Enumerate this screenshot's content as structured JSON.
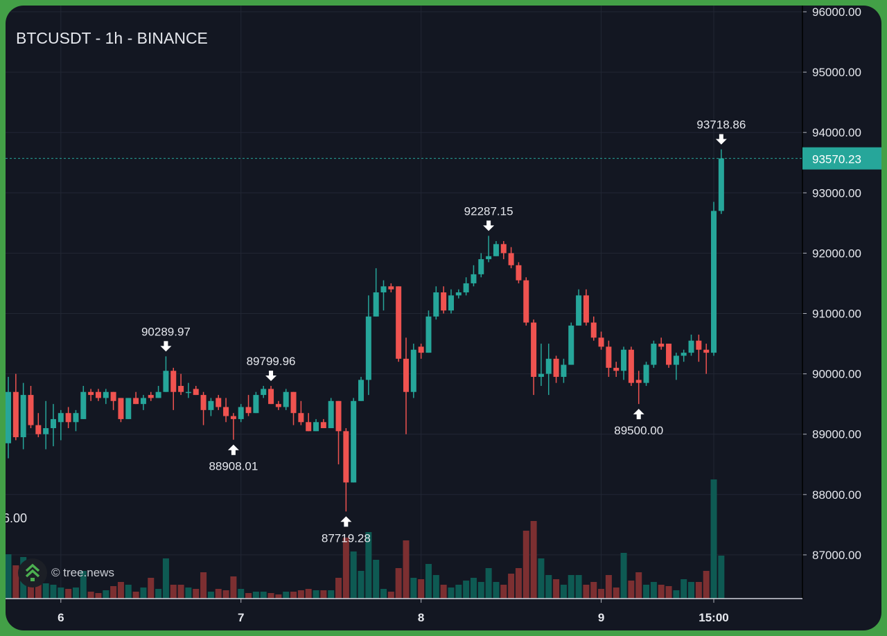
{
  "header": {
    "title": "BTCUSDT - 1h - BINANCE"
  },
  "watermark": {
    "text": "© tree.news",
    "icon": "tree-news-chevrons-logo"
  },
  "colors": {
    "up": "#26a69a",
    "down": "#ef5350",
    "up_volume": "#0e5a53",
    "down_volume": "#7c2f31",
    "background": "#131722",
    "grid": "#222734",
    "frame": "#43a047",
    "text": "#e6e8ee"
  },
  "chart_data": {
    "type": "candlestick",
    "title": "BTCUSDT - 1h - BINANCE",
    "interval": "1h",
    "ylim": [
      86300,
      96000
    ],
    "y_ticks": [
      "96000.00",
      "95000.00",
      "94000.00",
      "93000.00",
      "92000.00",
      "91000.00",
      "90000.00",
      "89000.00",
      "88000.00",
      "87000.00"
    ],
    "y_tick_values": [
      96000,
      95000,
      94000,
      93000,
      92000,
      91000,
      90000,
      89000,
      88000,
      87000
    ],
    "x_ticks": [
      {
        "label": "6",
        "candle": 7
      },
      {
        "label": "7",
        "candle": 31
      },
      {
        "label": "8",
        "candle": 55
      },
      {
        "label": "9",
        "candle": 79
      },
      {
        "label": "15:00",
        "candle": 94
      }
    ],
    "last_price": {
      "value": 93570.23,
      "label": "93570.23"
    },
    "grid": true,
    "ohlc": [
      [
        88850,
        89950,
        88600,
        89700
      ],
      [
        89700,
        90000,
        88900,
        88950
      ],
      [
        88950,
        89850,
        88750,
        89650
      ],
      [
        89650,
        89800,
        89100,
        89150
      ],
      [
        89150,
        89350,
        88950,
        89000
      ],
      [
        89000,
        89550,
        88750,
        89100
      ],
      [
        89100,
        89500,
        88800,
        89250
      ],
      [
        89200,
        89400,
        88900,
        89350
      ],
      [
        89350,
        89450,
        89100,
        89200
      ],
      [
        89200,
        89400,
        89050,
        89350
      ],
      [
        89250,
        89800,
        89250,
        89700
      ],
      [
        89700,
        89750,
        89550,
        89650
      ],
      [
        89700,
        89750,
        89550,
        89600
      ],
      [
        89600,
        89750,
        89500,
        89700
      ],
      [
        89700,
        89700,
        89400,
        89550
      ],
      [
        89600,
        89600,
        89200,
        89250
      ],
      [
        89250,
        89600,
        89250,
        89600
      ],
      [
        89600,
        89700,
        89500,
        89500
      ],
      [
        89500,
        89650,
        89400,
        89600
      ],
      [
        89650,
        89700,
        89550,
        89600
      ],
      [
        89600,
        89800,
        89600,
        89700
      ],
      [
        89700,
        90289.97,
        89700,
        90050
      ],
      [
        90050,
        90100,
        89400,
        89700
      ],
      [
        89800,
        90000,
        89650,
        89700
      ],
      [
        89700,
        89850,
        89600,
        89700
      ],
      [
        89750,
        89800,
        89650,
        89650
      ],
      [
        89650,
        89700,
        89150,
        89400
      ],
      [
        89400,
        89600,
        89300,
        89550
      ],
      [
        89600,
        89650,
        89400,
        89450
      ],
      [
        89450,
        89600,
        89200,
        89300
      ],
      [
        89300,
        89350,
        88908.01,
        89250
      ],
      [
        89250,
        89500,
        89200,
        89450
      ],
      [
        89450,
        89650,
        89300,
        89350
      ],
      [
        89350,
        89700,
        89350,
        89650
      ],
      [
        89650,
        89800,
        89600,
        89750
      ],
      [
        89750,
        89799.96,
        89500,
        89500
      ],
      [
        89500,
        89550,
        89400,
        89450
      ],
      [
        89450,
        89750,
        89400,
        89700
      ],
      [
        89700,
        89700,
        89150,
        89350
      ],
      [
        89350,
        89550,
        89150,
        89200
      ],
      [
        89200,
        89350,
        89050,
        89050
      ],
      [
        89050,
        89250,
        89050,
        89200
      ],
      [
        89200,
        89250,
        89100,
        89100
      ],
      [
        89100,
        89600,
        89100,
        89550
      ],
      [
        89550,
        89550,
        88500,
        89050
      ],
      [
        89050,
        89100,
        87719.28,
        88200
      ],
      [
        88200,
        89600,
        88200,
        89550
      ],
      [
        89550,
        89950,
        89550,
        89900
      ],
      [
        89900,
        91300,
        89650,
        90950
      ],
      [
        90950,
        91750,
        90950,
        91350
      ],
      [
        91350,
        91550,
        91050,
        91450
      ],
      [
        91450,
        91500,
        91350,
        91400
      ],
      [
        91450,
        91450,
        90200,
        90250
      ],
      [
        90250,
        90600,
        89000,
        89700
      ],
      [
        89700,
        90500,
        89600,
        90400
      ],
      [
        90450,
        90500,
        90250,
        90350
      ],
      [
        90350,
        91050,
        90350,
        90950
      ],
      [
        90950,
        91450,
        90900,
        91350
      ],
      [
        91350,
        91450,
        91000,
        91050
      ],
      [
        91050,
        91400,
        91000,
        91300
      ],
      [
        91300,
        91400,
        91250,
        91350
      ],
      [
        91350,
        91600,
        91300,
        91500
      ],
      [
        91500,
        91800,
        91450,
        91650
      ],
      [
        91650,
        92000,
        91600,
        91900
      ],
      [
        91900,
        92287.15,
        91850,
        91950
      ],
      [
        91950,
        92200,
        91950,
        92150
      ],
      [
        92150,
        92200,
        91900,
        92000
      ],
      [
        92000,
        92100,
        91750,
        91800
      ],
      [
        91800,
        91850,
        91500,
        91550
      ],
      [
        91550,
        91600,
        90800,
        90850
      ],
      [
        90850,
        90900,
        89650,
        89950
      ],
      [
        89950,
        90500,
        89800,
        90000
      ],
      [
        90000,
        90500,
        89650,
        90250
      ],
      [
        90250,
        90300,
        89850,
        89950
      ],
      [
        89950,
        90250,
        89850,
        90150
      ],
      [
        90150,
        90850,
        90150,
        90800
      ],
      [
        90800,
        91400,
        90800,
        91300
      ],
      [
        91300,
        91400,
        90800,
        90850
      ],
      [
        90850,
        90950,
        90550,
        90600
      ],
      [
        90600,
        90700,
        90400,
        90450
      ],
      [
        90450,
        90550,
        89950,
        90100
      ],
      [
        90100,
        90200,
        89950,
        90050
      ],
      [
        90050,
        90450,
        89900,
        90400
      ],
      [
        90400,
        90450,
        89800,
        89850
      ],
      [
        89900,
        90050,
        89500,
        89850
      ],
      [
        89850,
        90200,
        89800,
        90150
      ],
      [
        90150,
        90550,
        90100,
        90500
      ],
      [
        90500,
        90600,
        90400,
        90450
      ],
      [
        90500,
        90500,
        90100,
        90150
      ],
      [
        90150,
        90350,
        89900,
        90300
      ],
      [
        90300,
        90400,
        90200,
        90350
      ],
      [
        90350,
        90650,
        90300,
        90550
      ],
      [
        90550,
        90650,
        90200,
        90400
      ],
      [
        90400,
        90500,
        90000,
        90350
      ],
      [
        90350,
        92850,
        90300,
        92700
      ],
      [
        92700,
        93718.86,
        92650,
        93570.23
      ]
    ],
    "volume": [
      64,
      48,
      60,
      40,
      40,
      22,
      20,
      16,
      14,
      16,
      40,
      10,
      8,
      12,
      18,
      24,
      20,
      10,
      16,
      30,
      14,
      58,
      20,
      20,
      16,
      14,
      38,
      10,
      14,
      12,
      32,
      14,
      8,
      10,
      10,
      8,
      6,
      10,
      10,
      12,
      14,
      12,
      12,
      12,
      30,
      88,
      68,
      40,
      96,
      56,
      14,
      10,
      44,
      84,
      30,
      28,
      50,
      34,
      20,
      16,
      20,
      26,
      30,
      24,
      44,
      24,
      20,
      36,
      44,
      98,
      112,
      58,
      34,
      28,
      20,
      34,
      34,
      20,
      24,
      14,
      34,
      16,
      66,
      26,
      38,
      20,
      24,
      20,
      18,
      12,
      28,
      24,
      24,
      40,
      172,
      62
    ],
    "annotations": [
      {
        "candle": 21,
        "label": "90289.97",
        "type": "high"
      },
      {
        "candle": 30,
        "label": "88908.01",
        "type": "low"
      },
      {
        "candle": 35,
        "label": "89799.96",
        "type": "high"
      },
      {
        "candle": 45,
        "label": "87719.28",
        "type": "low"
      },
      {
        "candle": 64,
        "label": "92287.15",
        "type": "high"
      },
      {
        "candle": 84,
        "label": "89500.00",
        "type": "low"
      },
      {
        "candle": 95,
        "label": "93718.86",
        "type": "high"
      }
    ],
    "offscreen_label": "6.00"
  }
}
